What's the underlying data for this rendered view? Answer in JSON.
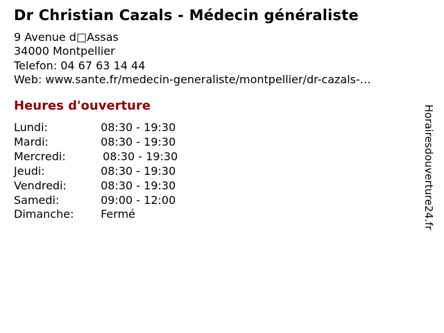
{
  "business": {
    "title": "Dr Christian Cazals - Médecin généraliste"
  },
  "contact": {
    "address_line1": "9 Avenue d□Assas",
    "address_line2": "34000 Montpellier",
    "phone_line": "Telefon: 04 67 63 14 44",
    "web_line": "Web: www.sante.fr/medecin-generaliste/montpellier/dr-cazals-…"
  },
  "hours": {
    "heading": "Heures d'ouverture",
    "days": [
      {
        "label": "Lundi:",
        "time": "08:30 - 19:30"
      },
      {
        "label": "Mardi:",
        "time": "08:30 - 19:30"
      },
      {
        "label": "Mercredi:",
        "time": "08:30 - 19:30"
      },
      {
        "label": "Jeudi:",
        "time": "08:30 - 19:30"
      },
      {
        "label": "Vendredi:",
        "time": "08:30 - 19:30"
      },
      {
        "label": "Samedi:",
        "time": "09:00 - 12:00"
      },
      {
        "label": "Dimanche:",
        "time": "Fermé"
      }
    ]
  },
  "watermark": {
    "text": "Horairesdouverture24.fr"
  },
  "colors": {
    "heading": "#8b0000",
    "text": "#000000",
    "background": "#ffffff"
  }
}
